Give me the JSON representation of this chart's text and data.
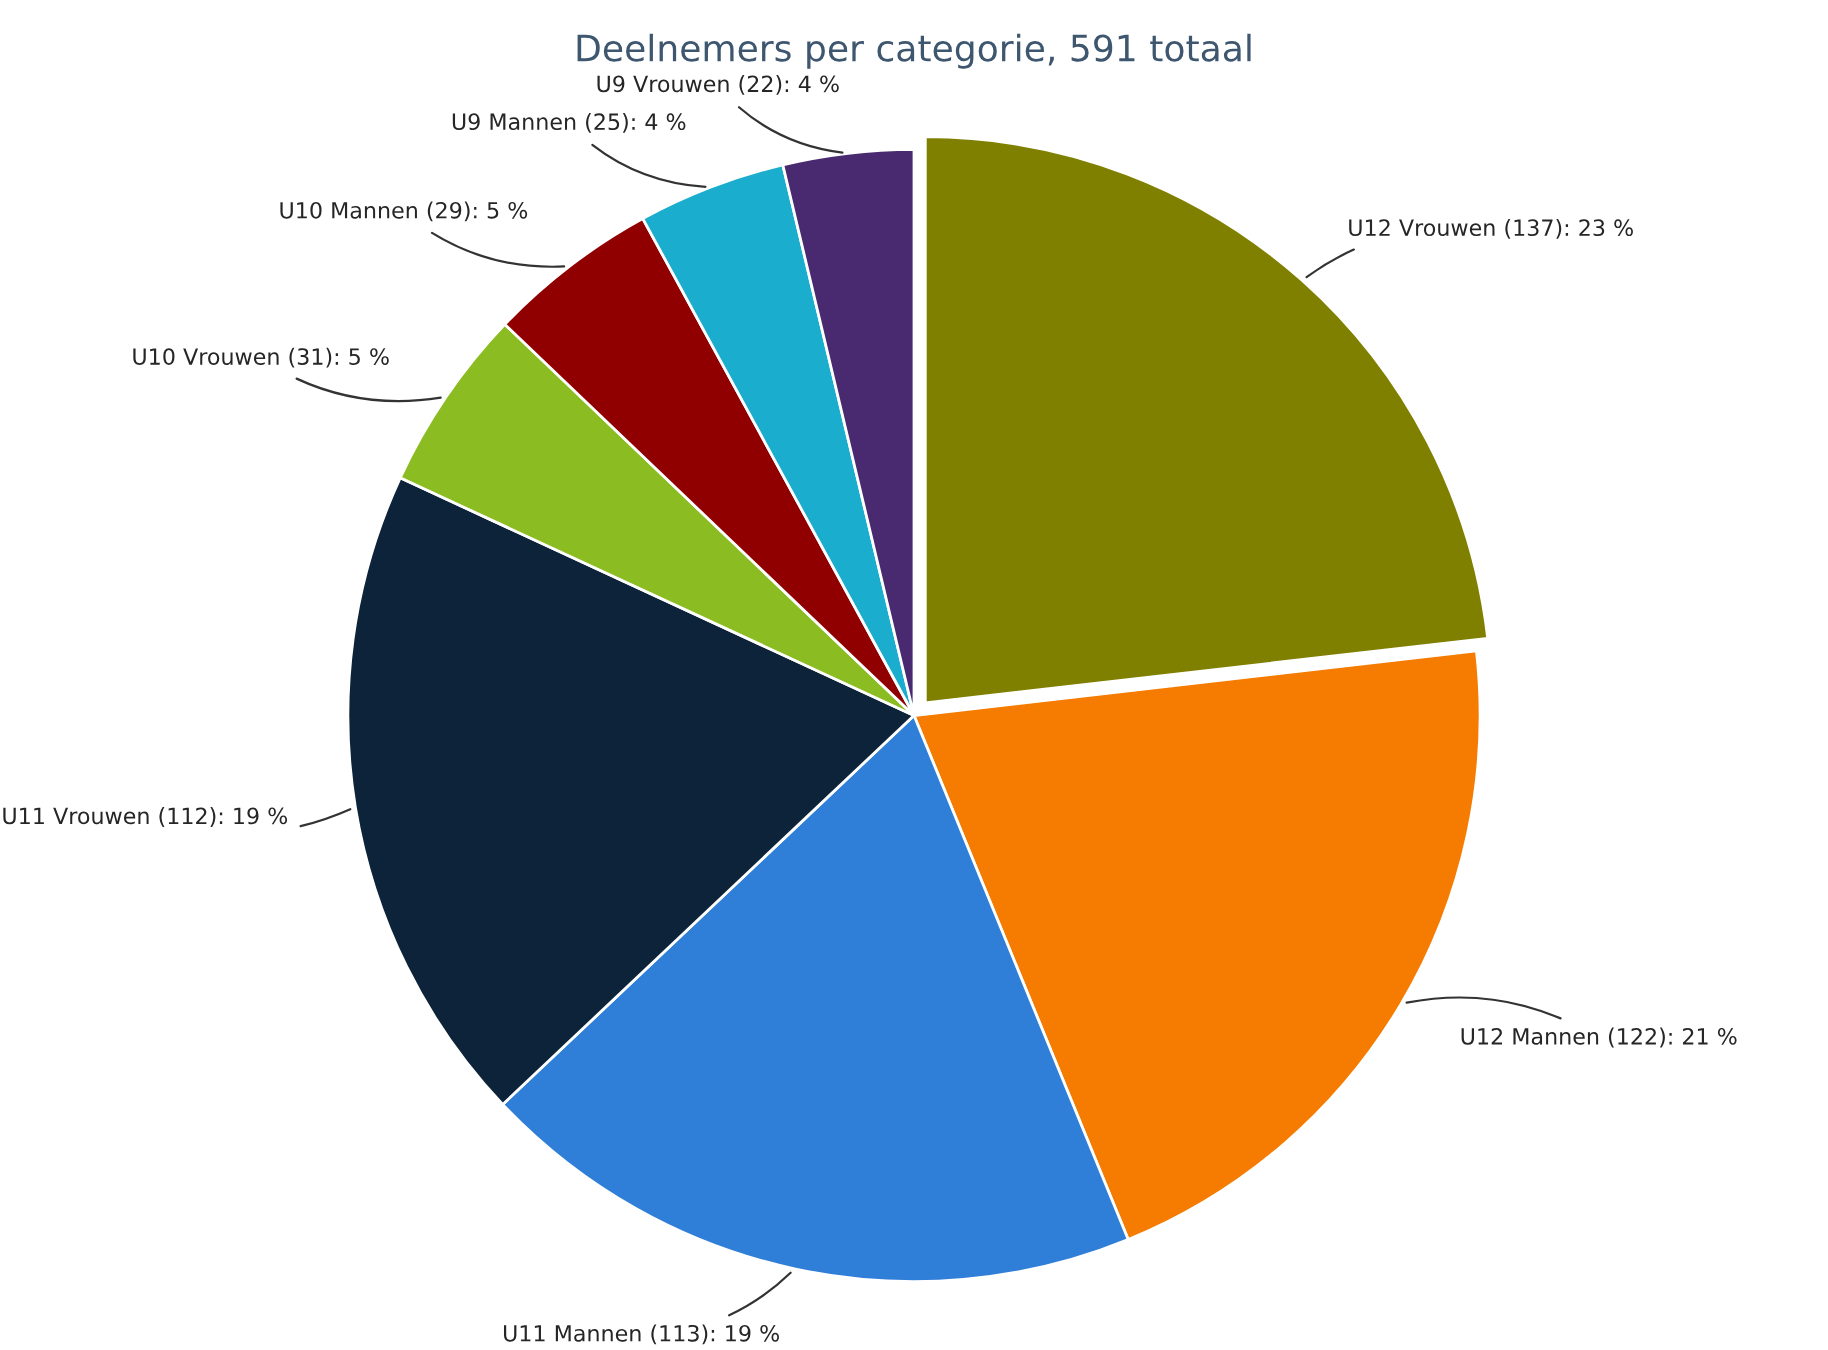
{
  "chart_data": {
    "type": "pie",
    "title": "Deelnemers per categorie, 591 totaal",
    "categories": [
      "U12 Vrouwen",
      "U12 Mannen",
      "U11 Mannen",
      "U11 Vrouwen",
      "U10 Vrouwen",
      "U10 Mannen",
      "U9 Mannen",
      "U9 Vrouwen"
    ],
    "values": [
      137,
      122,
      113,
      112,
      31,
      29,
      25,
      22
    ],
    "value_labels": [
      "(137): 23 %",
      "(122): 21 %",
      "(113): 19 %",
      "(112): 19 %",
      "(31): 5 %",
      "(29): 5 %",
      "(25): 4 %",
      "(22): 4 %"
    ],
    "colors": [
      "#808000",
      "#f57c00",
      "#2f7ed8",
      "#0d233a",
      "#8bbc21",
      "#910000",
      "#1aadce",
      "#492970"
    ]
  }
}
